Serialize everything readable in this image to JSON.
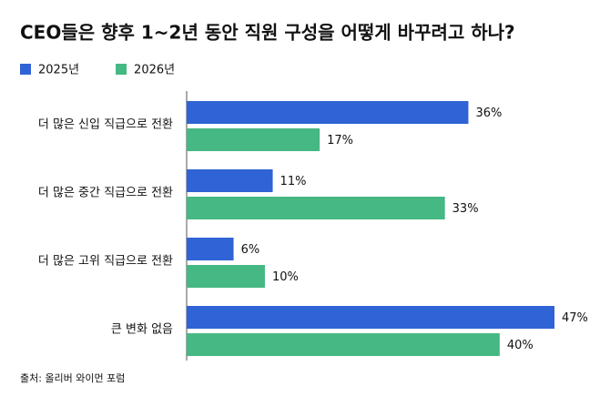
{
  "chart_data": {
    "type": "bar",
    "orientation": "horizontal",
    "title": "CEO들은 향후 1~2년 동안 직원 구성을 어떻게 바꾸려고 하나?",
    "source": "출처: 올리버 와이먼 포럼",
    "legend": "top-left",
    "categories": [
      "더 많은 신입 직급으로 전환",
      "더 많은 중간 직급으로 전환",
      "더 많은 고위 직급으로 전환",
      "큰 변화 없음"
    ],
    "series": [
      {
        "name": "2025년",
        "color": "#2f63d6",
        "values": [
          36,
          11,
          6,
          47
        ],
        "value_labels": [
          "36%",
          "11%",
          "6%",
          "47%"
        ]
      },
      {
        "name": "2026년",
        "color": "#45b883",
        "values": [
          17,
          33,
          10,
          40
        ],
        "value_labels": [
          "17%",
          "33%",
          "10%",
          "40%"
        ]
      }
    ]
  }
}
